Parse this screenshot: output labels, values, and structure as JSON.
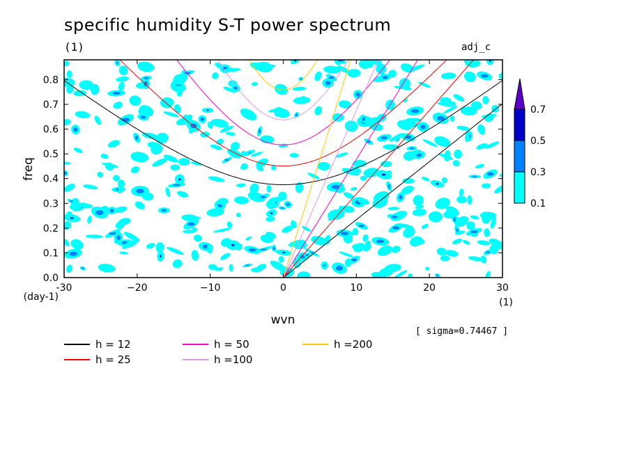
{
  "chart_data": {
    "type": "heatmap",
    "title": "specific humidity S-T power spectrum",
    "subtitle": "(1)",
    "run_tag": "adj_c",
    "xlabel": "wvn",
    "ylabel": "freq",
    "x_unit": "(1)",
    "y_unit": "(day-1)",
    "xlim": [
      -30,
      30
    ],
    "ylim": [
      0,
      0.88
    ],
    "xticks": [
      -30,
      -20,
      -10,
      0,
      10,
      20,
      30
    ],
    "xtick_labels": [
      "-30",
      "−20",
      "−10",
      "0",
      "10",
      "20",
      "30"
    ],
    "yticks": [
      0.0,
      0.1,
      0.2,
      0.3,
      0.4,
      0.5,
      0.6,
      0.7,
      0.8
    ],
    "ytick_labels": [
      "0.0",
      "0.1",
      "0.2",
      "0.3",
      "0.4",
      "0.5",
      "0.6",
      "0.7",
      "0.8"
    ],
    "sigma_text": "[ sigma=0.74467 ]",
    "colorbar": {
      "levels": [
        0.1,
        0.3,
        0.5,
        0.7
      ],
      "level_labels": [
        "0.1",
        "0.3",
        "0.5",
        "0.7"
      ],
      "colors": [
        "#00ffff",
        "#0080ff",
        "#0000c8",
        "#5a00c8"
      ]
    },
    "dispersion_curves": [
      {
        "label": "h = 12",
        "h": 12,
        "color": "#000000"
      },
      {
        "label": "h = 25",
        "h": 25,
        "color": "#ff0000"
      },
      {
        "label": "h = 50",
        "h": 50,
        "color": "#ff00c8"
      },
      {
        "label": "h =100",
        "h": 100,
        "color": "#d89ae0"
      },
      {
        "label": "h =200",
        "h": 200,
        "color": "#ffc800"
      }
    ]
  }
}
